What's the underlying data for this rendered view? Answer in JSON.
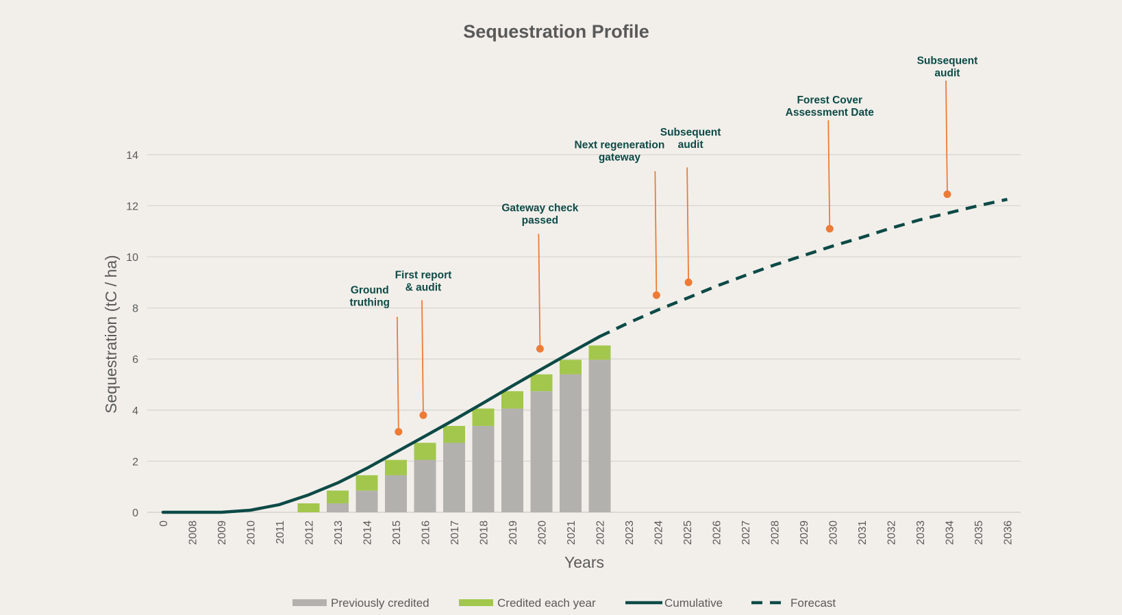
{
  "chart_data": {
    "type": "bar",
    "title": "Sequestration Profile",
    "xlabel": "Years",
    "ylabel": "Sequestration (tC / ha)",
    "ylim": [
      0,
      14
    ],
    "yticks": [
      0,
      2,
      4,
      6,
      8,
      10,
      12,
      14
    ],
    "grid": true,
    "legend_position": "bottom",
    "categories": [
      "0",
      "2008",
      "2009",
      "2010",
      "2011",
      "2012",
      "2013",
      "2014",
      "2015",
      "2016",
      "2017",
      "2018",
      "2019",
      "2020",
      "2021",
      "2022",
      "2023",
      "2024",
      "2025",
      "2026",
      "2027",
      "2028",
      "2029",
      "2030",
      "2031",
      "2032",
      "2033",
      "2034",
      "2035",
      "2036"
    ],
    "series": [
      {
        "name": "Previously credited",
        "kind": "bar-stack-bottom",
        "color": "#b3b1ae",
        "values": [
          null,
          null,
          null,
          null,
          null,
          0,
          0.35,
          0.85,
          1.45,
          2.05,
          2.72,
          3.38,
          4.06,
          4.74,
          5.4,
          5.97,
          null,
          null,
          null,
          null,
          null,
          null,
          null,
          null,
          null,
          null,
          null,
          null,
          null,
          null
        ]
      },
      {
        "name": "Credited each year",
        "kind": "bar-stack-top",
        "color": "#a3c74d",
        "values": [
          null,
          null,
          null,
          null,
          null,
          0.35,
          0.5,
          0.6,
          0.6,
          0.67,
          0.66,
          0.68,
          0.68,
          0.66,
          0.57,
          0.56,
          null,
          null,
          null,
          null,
          null,
          null,
          null,
          null,
          null,
          null,
          null,
          null,
          null,
          null
        ]
      },
      {
        "name": "Cumulative",
        "kind": "line",
        "color": "#0d4a47",
        "values": [
          0,
          0,
          0,
          0.08,
          0.3,
          0.68,
          1.15,
          1.72,
          2.35,
          2.98,
          3.62,
          4.28,
          4.95,
          5.6,
          6.25,
          6.88,
          null,
          null,
          null,
          null,
          null,
          null,
          null,
          null,
          null,
          null,
          null,
          null,
          null,
          null
        ]
      },
      {
        "name": "Forecast",
        "kind": "line-dashed",
        "color": "#0d4a47",
        "values": [
          null,
          null,
          null,
          null,
          null,
          null,
          null,
          null,
          null,
          null,
          null,
          null,
          null,
          null,
          null,
          6.88,
          7.42,
          7.92,
          8.38,
          8.85,
          9.27,
          9.68,
          10.05,
          10.42,
          10.76,
          11.12,
          11.45,
          11.72,
          12.0,
          12.25
        ]
      }
    ],
    "annotations": [
      {
        "lines": [
          "Ground",
          "truthing"
        ],
        "category": "2015",
        "value": 3.15,
        "top": 7.65,
        "dx": 0.09,
        "label_dx": -0.9,
        "label_value": 8.56
      },
      {
        "lines": [
          "First report",
          "& audit"
        ],
        "category": "2016",
        "value": 3.8,
        "top": 8.3,
        "dx": -0.06,
        "label_dx": -0.06,
        "label_value": 9.15
      },
      {
        "lines": [
          "Gateway check",
          "passed"
        ],
        "category": "2020",
        "value": 6.4,
        "top": 10.9,
        "dx": -0.05,
        "label_dx": -0.05,
        "label_value": 11.78
      },
      {
        "lines": [
          "Next regeneration",
          "gateway"
        ],
        "category": "2024",
        "value": 8.5,
        "top": 13.35,
        "dx": -0.05,
        "label_dx": -1.32,
        "label_value": 14.25
      },
      {
        "lines": [
          "Subsequent",
          "audit"
        ],
        "category": "2025",
        "value": 9.0,
        "top": 13.5,
        "dx": 0.05,
        "label_dx": 0.12,
        "label_value": 14.75
      },
      {
        "lines": [
          "Forest Cover",
          "Assessment Date"
        ],
        "category": "2030",
        "value": 11.1,
        "top": 15.35,
        "dx": -0.1,
        "label_dx": -0.1,
        "label_value": 16.0
      },
      {
        "lines": [
          "Subsequent",
          "audit"
        ],
        "category": "2034",
        "value": 12.45,
        "top": 16.9,
        "dx": -0.06,
        "label_dx": -0.06,
        "label_value": 17.55
      }
    ],
    "colors": {
      "marker": "#ec7b37",
      "grid": "#d9d6d1"
    }
  }
}
